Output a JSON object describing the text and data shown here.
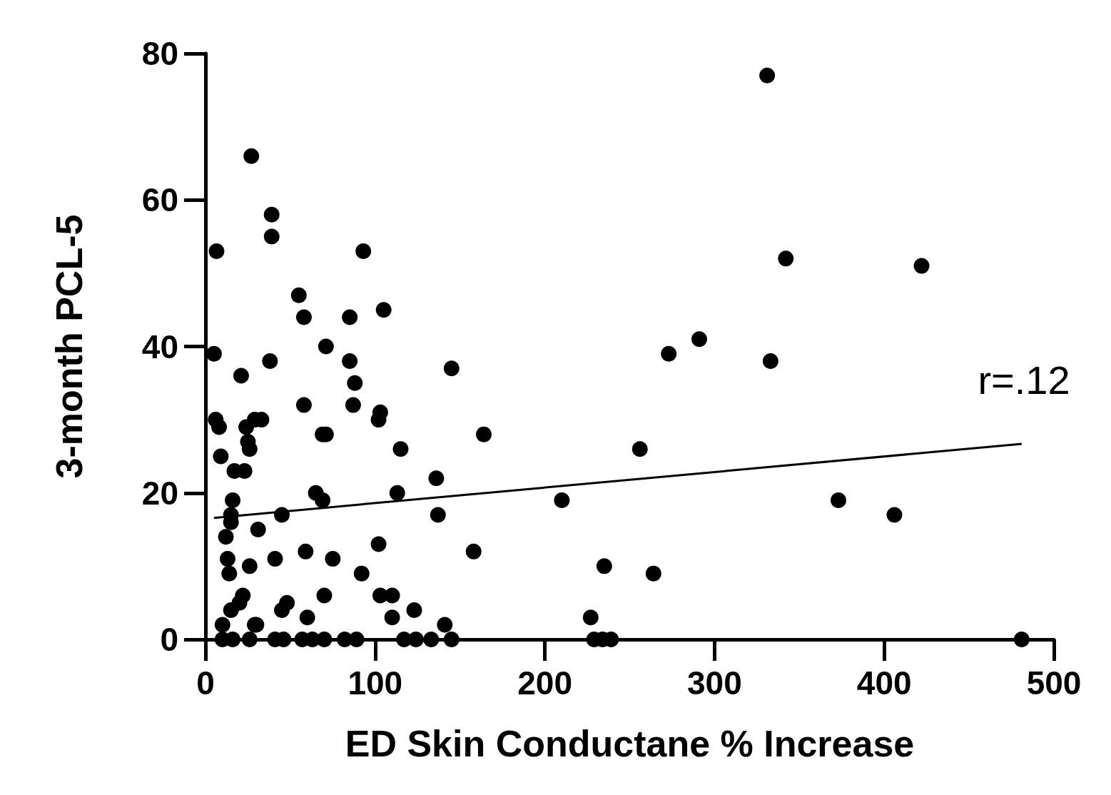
{
  "chart_data": {
    "type": "scatter",
    "xlabel": "ED Skin Conductane % Increase",
    "ylabel": "3-month PCL-5",
    "xlim": [
      0,
      500
    ],
    "xticks": [
      0,
      100,
      200,
      300,
      400,
      500
    ],
    "ylim": [
      0,
      80
    ],
    "yticks": [
      0,
      20,
      40,
      60,
      80
    ],
    "grid": false,
    "marker": "circle",
    "series": [
      {
        "color": "#000000",
        "x": [
          331,
          27,
          39,
          39,
          6.5,
          93,
          342,
          422,
          55,
          58,
          85,
          105,
          5,
          38,
          71,
          85,
          88,
          145,
          273,
          291,
          333,
          6,
          8,
          9,
          21,
          58,
          87,
          103,
          102,
          69,
          71,
          115,
          164,
          136,
          256,
          29,
          33,
          24,
          25,
          26,
          17,
          23,
          16,
          15,
          15,
          12,
          65,
          69,
          113,
          45,
          137,
          210,
          373,
          406,
          31,
          13,
          14,
          26,
          41,
          59,
          75,
          92,
          102,
          158,
          235,
          264,
          22,
          20,
          15,
          48,
          45,
          70,
          103,
          110,
          60,
          110,
          123,
          10,
          29,
          30,
          141,
          227,
          10,
          16,
          26,
          41,
          46,
          57,
          63,
          70,
          82,
          89,
          117,
          124,
          133,
          145,
          229,
          234,
          239,
          481
        ],
        "values": [
          77,
          66,
          58,
          55,
          53,
          53,
          52,
          51,
          47,
          44,
          44,
          45,
          39,
          38,
          40,
          38,
          35,
          37,
          39,
          41,
          38,
          30,
          29,
          25,
          36,
          32,
          32,
          31,
          30,
          28,
          28,
          26,
          28,
          22,
          26,
          30,
          30,
          29,
          27,
          26,
          23,
          23,
          19,
          17,
          16,
          14,
          20,
          19,
          20,
          17,
          17,
          19,
          19,
          17,
          15,
          11,
          9,
          10,
          11,
          12,
          11,
          9,
          13,
          12,
          10,
          9,
          6,
          5,
          4,
          5,
          4,
          6,
          6,
          6,
          3,
          3,
          4,
          2,
          2,
          2,
          2,
          3,
          0,
          0,
          0,
          0,
          0,
          0,
          0,
          0,
          0,
          0,
          0,
          0,
          0,
          0,
          0,
          0,
          0,
          0
        ]
      },
      {
        "type": "line",
        "color": "#000000",
        "marker": "none",
        "x": [
          5,
          481
        ],
        "values": [
          16.6,
          26.7
        ]
      }
    ],
    "annotations": [
      "r=.12"
    ]
  }
}
